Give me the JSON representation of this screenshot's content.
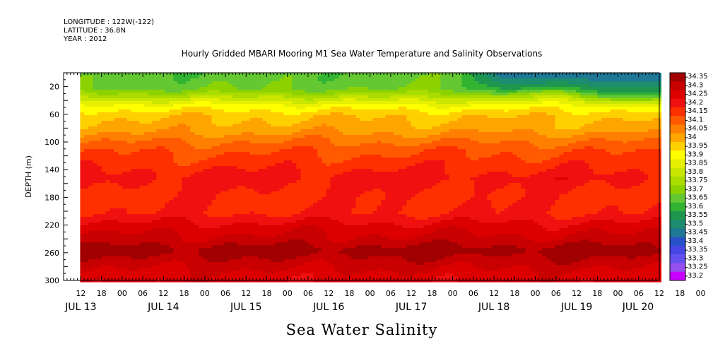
{
  "header": {
    "longitude": "LONGITUDE : 122W(-122)",
    "latitude": "LATITUDE : 36.8N",
    "year": "YEAR : 2012"
  },
  "chart_data": {
    "type": "heatmap",
    "title": "Hourly Gridded MBARI Mooring M1 Sea Water Temperature and Salinity Observations",
    "xlabel": "Sea Water Salinity",
    "ylabel": "DEPTH (m)",
    "ylim": [
      300,
      0
    ],
    "y_ticks": [
      20,
      60,
      100,
      140,
      180,
      220,
      260,
      300
    ],
    "x_range": [
      "2012-07-13T07:00",
      "2012-07-20T12:00"
    ],
    "x_hour_ticks": [
      "12",
      "18",
      "00",
      "06",
      "12",
      "18",
      "00",
      "06",
      "12",
      "18",
      "00",
      "06",
      "12",
      "18",
      "00",
      "06",
      "12",
      "18",
      "00",
      "06",
      "12",
      "18",
      "00",
      "06",
      "12",
      "18",
      "00",
      "06",
      "12",
      "18",
      "00",
      "06"
    ],
    "x_date_labels": [
      "JUL 13",
      "JUL 14",
      "JUL 15",
      "JUL 16",
      "JUL 17",
      "JUL 18",
      "JUL 19",
      "JUL 20"
    ],
    "data_start_day": 0.2,
    "colorbar": {
      "levels": [
        "34.35",
        "34.3",
        "34.25",
        "34.2",
        "34.15",
        "34.1",
        "34.05",
        "34",
        "33.95",
        "33.9",
        "33.85",
        "33.8",
        "33.75",
        "33.7",
        "33.65",
        "33.6",
        "33.55",
        "33.5",
        "33.45",
        "33.4",
        "33.35",
        "33.3",
        "33.25",
        "33.2"
      ],
      "colors": [
        "#a00000",
        "#c80000",
        "#dc0000",
        "#f01010",
        "#ff3000",
        "#ff5a00",
        "#ff8000",
        "#ffa500",
        "#ffd000",
        "#ffff00",
        "#e6f000",
        "#c8e600",
        "#aadc00",
        "#8cd200",
        "#64c832",
        "#32b432",
        "#1e9650",
        "#1e8c6e",
        "#1e7896",
        "#2850c8",
        "#4646e6",
        "#6450f0",
        "#9650f0",
        "#c800ff"
      ]
    },
    "profile": [
      {
        "depth": 0,
        "value": 33.62
      },
      {
        "depth": 20,
        "value": 33.64
      },
      {
        "depth": 30,
        "value": 33.72
      },
      {
        "depth": 45,
        "value": 33.86
      },
      {
        "depth": 60,
        "value": 33.94
      },
      {
        "depth": 80,
        "value": 33.98
      },
      {
        "depth": 95,
        "value": 34.04
      },
      {
        "depth": 110,
        "value": 34.09
      },
      {
        "depth": 130,
        "value": 34.13
      },
      {
        "depth": 150,
        "value": 34.17
      },
      {
        "depth": 175,
        "value": 34.14
      },
      {
        "depth": 200,
        "value": 34.15
      },
      {
        "depth": 220,
        "value": 34.22
      },
      {
        "depth": 240,
        "value": 34.27
      },
      {
        "depth": 255,
        "value": 34.33
      },
      {
        "depth": 270,
        "value": 34.28
      },
      {
        "depth": 290,
        "value": 34.23
      },
      {
        "depth": 300,
        "value": 34.22
      }
    ],
    "surface_fresh_event": {
      "start_day": 4.75,
      "end_day": 7.5,
      "value": 33.4
    }
  }
}
